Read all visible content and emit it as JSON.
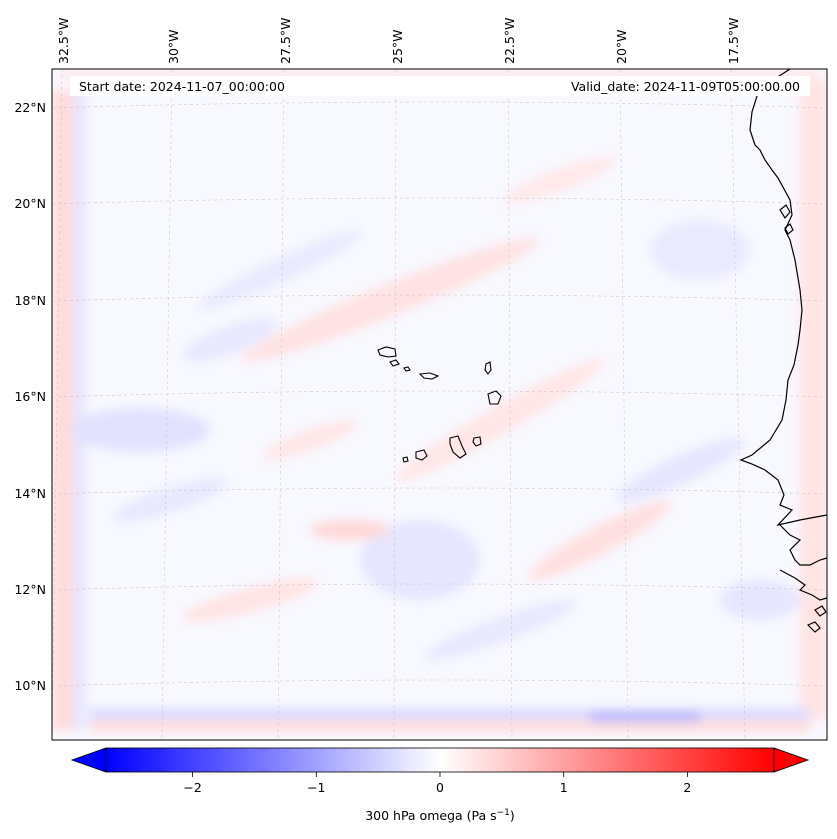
{
  "map": {
    "start_date": "Start date: 2024-11-07_00:00:00",
    "valid_date": "Valid_date: 2024-11-09T05:00:00.00",
    "lon_labels": [
      "32.5°W",
      "30°W",
      "27.5°W",
      "25°W",
      "22.5°W",
      "20°W",
      "17.5°W"
    ],
    "lat_labels": [
      "22°N",
      "20°N",
      "18°N",
      "16°N",
      "14°N",
      "12°N",
      "10°N"
    ],
    "field_colors": {
      "negative": "#0000ff",
      "zero": "#ffffff",
      "positive": "#ff0000"
    }
  },
  "colorbar": {
    "label_prefix": "300 hPa omega (Pa s",
    "label_sup": "−1",
    "label_suffix": ")",
    "ticks": [
      "−2",
      "−1",
      "0",
      "1",
      "2"
    ],
    "min": -2.7,
    "max": 2.7,
    "tick_values": [
      -2,
      -1,
      0,
      1,
      2
    ]
  }
}
